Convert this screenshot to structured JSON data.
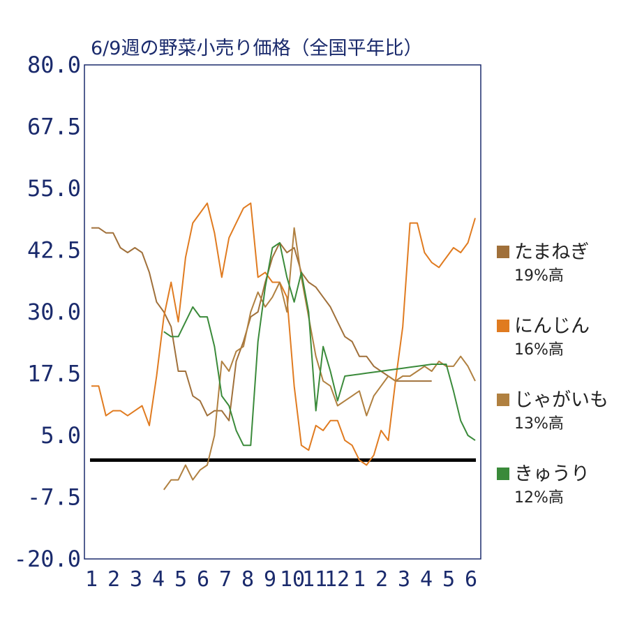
{
  "chart_data": {
    "type": "line",
    "title": "6/9週の野菜小売り価格（全国平年比）",
    "ylim": [
      -20,
      80
    ],
    "yticks": [
      "80.0",
      "67.5",
      "55.0",
      "42.5",
      "30.0",
      "17.5",
      "5.0",
      "-7.5",
      "-20.0"
    ],
    "ytick_values": [
      80,
      67.5,
      55,
      42.5,
      30,
      17.5,
      5,
      -7.5,
      -20
    ],
    "xticks": [
      "1",
      "2",
      "3",
      "4",
      "5",
      "6",
      "7",
      "8",
      "9",
      "10",
      "11",
      "12",
      "1",
      "2",
      "3",
      "4",
      "5",
      "6"
    ],
    "x_count": 54,
    "reference_line": 0,
    "legend_position": "right",
    "series": [
      {
        "name": "たまねぎ",
        "note": "19%高",
        "color": "#a0703a",
        "values": [
          47,
          47,
          46,
          46,
          43,
          42,
          43,
          42,
          38,
          32,
          30,
          27,
          18,
          18,
          13,
          12,
          9,
          10,
          10,
          8,
          20,
          24,
          29,
          30,
          36,
          41,
          44,
          42,
          43,
          38,
          36,
          35,
          33,
          31,
          28,
          25,
          24,
          21,
          21,
          19,
          18,
          17,
          16,
          16,
          16,
          16,
          16,
          16,
          null,
          null,
          null,
          null,
          null,
          null
        ]
      },
      {
        "name": "にんじん",
        "note": "16%高",
        "color": "#e07b20",
        "values": [
          15,
          15,
          9,
          10,
          10,
          9,
          10,
          11,
          7,
          17,
          29,
          36,
          28,
          41,
          48,
          50,
          52,
          46,
          37,
          45,
          48,
          51,
          52,
          37,
          38,
          36,
          36,
          33,
          15,
          3,
          2,
          7,
          6,
          8,
          8,
          4,
          3,
          0,
          -1,
          1,
          6,
          4,
          16,
          27,
          48,
          48,
          42,
          40,
          39,
          41,
          43,
          42,
          44,
          49
        ]
      },
      {
        "name": "じゃがいも",
        "note": "13%高",
        "color": "#b08040",
        "values": [
          null,
          null,
          null,
          null,
          null,
          null,
          null,
          null,
          null,
          null,
          -6,
          -4,
          -4,
          -1,
          -4,
          -2,
          -1,
          5,
          20,
          18,
          22,
          23,
          30,
          34,
          31,
          33,
          36,
          30,
          47,
          37,
          29,
          21,
          16,
          15,
          11,
          12,
          13,
          14,
          9,
          13,
          15,
          17,
          16,
          17,
          17,
          18,
          19,
          18,
          20,
          19,
          19,
          21,
          19,
          16
        ]
      },
      {
        "name": "きゅうり",
        "note": "12%高",
        "color": "#3a8a3a",
        "values": [
          null,
          null,
          null,
          null,
          null,
          null,
          null,
          null,
          null,
          null,
          26,
          25,
          25,
          28,
          31,
          29,
          29,
          23,
          13,
          11,
          6,
          3,
          3,
          24,
          35,
          43,
          44,
          37,
          32,
          38,
          30,
          10,
          23,
          18,
          12,
          17,
          17.2,
          17.4,
          17.6,
          17.8,
          18,
          18.2,
          18.4,
          18.6,
          18.8,
          19,
          19.2,
          19.4,
          19.4,
          19.4,
          14,
          8,
          5,
          4
        ]
      }
    ]
  }
}
